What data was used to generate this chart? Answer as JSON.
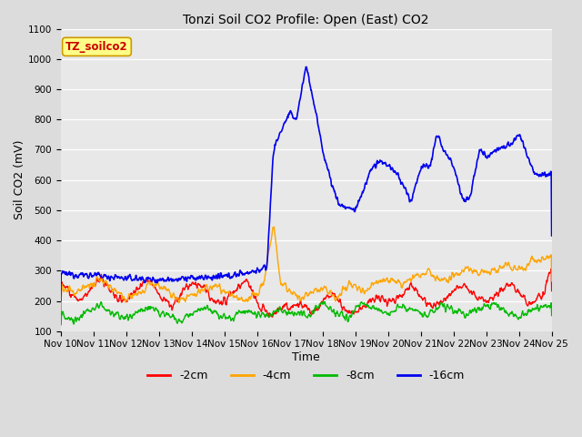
{
  "title": "Tonzi Soil CO2 Profile: Open (East) CO2",
  "xlabel": "Time",
  "ylabel": "Soil CO2 (mV)",
  "ylim": [
    100,
    1100
  ],
  "yticks": [
    100,
    200,
    300,
    400,
    500,
    600,
    700,
    800,
    900,
    1000,
    1100
  ],
  "xtick_labels": [
    "Nov 10",
    "Nov 11",
    "Nov 12",
    "Nov 13",
    "Nov 14",
    "Nov 15",
    "Nov 16",
    "Nov 17",
    "Nov 18",
    "Nov 19",
    "Nov 20",
    "Nov 21",
    "Nov 22",
    "Nov 23",
    "Nov 24",
    "Nov 25"
  ],
  "legend_label": "TZ_soilco2",
  "legend_box_facecolor": "#FFFF88",
  "legend_box_edgecolor": "#CC9900",
  "legend_text_color": "#CC0000",
  "series_labels": [
    "-2cm",
    "-4cm",
    "-8cm",
    "-16cm"
  ],
  "series_colors": [
    "#FF0000",
    "#FFA500",
    "#00BB00",
    "#0000EE"
  ],
  "bg_color": "#DCDCDC",
  "plot_bg_color": "#E8E8E8",
  "grid_color": "#FFFFFF",
  "figsize": [
    6.4,
    4.8
  ],
  "dpi": 100
}
